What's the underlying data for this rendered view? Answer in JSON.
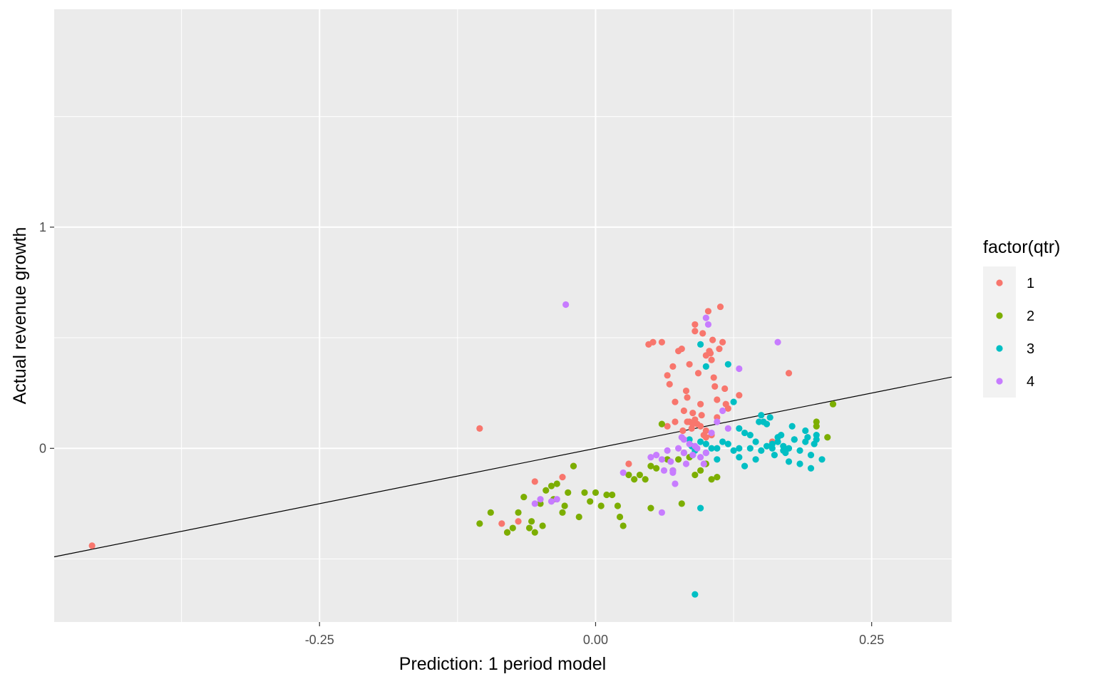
{
  "chart_data": {
    "type": "scatter",
    "title": "",
    "xlabel": "Prediction: 1 period model",
    "ylabel": "Actual revenue growth",
    "xlim": [
      -0.4903,
      0.3225
    ],
    "ylim": [
      -0.785,
      1.985
    ],
    "x_ticks": [
      -0.25,
      0.0,
      0.25
    ],
    "x_tick_labels": [
      "-0.25",
      "0.00",
      "0.25"
    ],
    "y_ticks": [
      0,
      1
    ],
    "y_tick_labels": [
      "0",
      "1"
    ],
    "grid": true,
    "reference_line": {
      "intercept": 0,
      "slope": 1
    },
    "legend": {
      "title": "factor(qtr)",
      "placement": "right",
      "entries": [
        {
          "label": "1",
          "color": "#F8766D"
        },
        {
          "label": "2",
          "color": "#7CAE00"
        },
        {
          "label": "3",
          "color": "#00BFC4"
        },
        {
          "label": "4",
          "color": "#C77CFF"
        }
      ]
    },
    "series": [
      {
        "name": "1",
        "color": "#F8766D",
        "x": [
          -0.456,
          -0.105,
          -0.085,
          -0.08,
          -0.07,
          -0.055,
          -0.03,
          -0.02,
          0.03,
          0.048,
          0.052,
          0.06,
          0.065,
          0.067,
          0.07,
          0.072,
          0.075,
          0.078,
          0.08,
          0.082,
          0.083,
          0.085,
          0.085,
          0.087,
          0.088,
          0.09,
          0.09,
          0.092,
          0.093,
          0.095,
          0.096,
          0.097,
          0.098,
          0.1,
          0.1,
          0.102,
          0.103,
          0.104,
          0.105,
          0.106,
          0.107,
          0.108,
          0.11,
          0.11,
          0.112,
          0.113,
          0.115,
          0.117,
          0.118,
          0.12,
          0.13,
          0.16,
          0.175,
          0.065,
          0.072,
          0.079,
          0.083,
          0.088,
          0.09,
          0.095,
          0.1,
          0.105
        ],
        "y": [
          -0.44,
          0.09,
          -0.34,
          -0.38,
          -0.33,
          -0.15,
          -0.13,
          -0.08,
          -0.07,
          0.47,
          0.48,
          0.48,
          0.33,
          0.29,
          0.37,
          0.21,
          0.44,
          0.45,
          0.17,
          0.26,
          0.23,
          0.38,
          0.12,
          0.09,
          0.11,
          0.56,
          0.53,
          0.11,
          0.34,
          0.2,
          0.15,
          0.52,
          0.06,
          0.42,
          0.05,
          0.62,
          0.44,
          0.43,
          0.4,
          0.49,
          0.32,
          0.28,
          0.14,
          0.22,
          0.45,
          0.64,
          0.48,
          0.27,
          0.2,
          0.18,
          0.24,
          0.03,
          0.34,
          0.1,
          0.12,
          0.08,
          0.12,
          0.16,
          0.13,
          0.1,
          0.08,
          0.06
        ]
      },
      {
        "name": "2",
        "color": "#7CAE00",
        "x": [
          -0.105,
          -0.095,
          -0.08,
          -0.075,
          -0.07,
          -0.065,
          -0.06,
          -0.058,
          -0.055,
          -0.05,
          -0.048,
          -0.045,
          -0.04,
          -0.038,
          -0.035,
          -0.03,
          -0.028,
          -0.025,
          -0.02,
          -0.015,
          -0.01,
          -0.005,
          0.0,
          0.005,
          0.01,
          0.015,
          0.02,
          0.022,
          0.025,
          0.03,
          0.035,
          0.04,
          0.045,
          0.05,
          0.055,
          0.06,
          0.065,
          0.07,
          0.075,
          0.08,
          0.085,
          0.09,
          0.095,
          0.1,
          0.105,
          0.11,
          0.2,
          0.215,
          0.2,
          0.21,
          0.05,
          0.078
        ],
        "y": [
          -0.34,
          -0.29,
          -0.38,
          -0.36,
          -0.29,
          -0.22,
          -0.36,
          -0.33,
          -0.38,
          -0.25,
          -0.35,
          -0.19,
          -0.17,
          -0.23,
          -0.16,
          -0.29,
          -0.26,
          -0.2,
          -0.08,
          -0.31,
          -0.2,
          -0.24,
          -0.2,
          -0.26,
          -0.21,
          -0.21,
          -0.26,
          -0.31,
          -0.35,
          -0.12,
          -0.14,
          -0.12,
          -0.14,
          -0.08,
          -0.09,
          0.11,
          -0.05,
          -0.1,
          -0.05,
          -0.02,
          -0.04,
          -0.12,
          -0.1,
          -0.07,
          -0.14,
          -0.13,
          0.12,
          0.2,
          0.1,
          0.05,
          -0.27,
          -0.25
        ]
      },
      {
        "name": "3",
        "color": "#00BFC4",
        "x": [
          0.09,
          0.095,
          0.1,
          0.12,
          0.125,
          0.13,
          0.135,
          0.14,
          0.145,
          0.148,
          0.15,
          0.152,
          0.155,
          0.158,
          0.16,
          0.162,
          0.165,
          0.168,
          0.17,
          0.172,
          0.175,
          0.178,
          0.18,
          0.185,
          0.19,
          0.192,
          0.195,
          0.198,
          0.2,
          0.205,
          0.095,
          0.1,
          0.11,
          0.12,
          0.125,
          0.13,
          0.14,
          0.085,
          0.087,
          0.09,
          0.095,
          0.1,
          0.105,
          0.11,
          0.115,
          0.13,
          0.135,
          0.145,
          0.15,
          0.155,
          0.16,
          0.165,
          0.17,
          0.175,
          0.18,
          0.185,
          0.19,
          0.195,
          0.2,
          0.088,
          0.09
        ],
        "y": [
          -0.66,
          -0.27,
          0.37,
          0.38,
          0.21,
          0.09,
          0.07,
          0.06,
          0.03,
          0.12,
          0.15,
          0.12,
          0.11,
          0.14,
          0.02,
          -0.03,
          0.05,
          0.06,
          0.01,
          -0.02,
          -0.06,
          0.1,
          0.04,
          -0.07,
          0.08,
          0.05,
          -0.09,
          0.02,
          0.06,
          -0.05,
          0.47,
          -0.02,
          -0.05,
          0.02,
          -0.01,
          0.0,
          0.0,
          0.04,
          0.01,
          0.0,
          0.03,
          0.02,
          0.0,
          0.0,
          0.03,
          -0.04,
          -0.08,
          -0.05,
          -0.01,
          0.01,
          0.0,
          0.03,
          -0.01,
          0.0,
          0.04,
          -0.01,
          0.03,
          -0.03,
          0.04,
          -0.03,
          -0.01
        ]
      },
      {
        "name": "4",
        "color": "#C77CFF",
        "x": [
          -0.027,
          -0.055,
          -0.05,
          -0.04,
          -0.035,
          0.025,
          0.05,
          0.055,
          0.06,
          0.062,
          0.065,
          0.068,
          0.07,
          0.072,
          0.075,
          0.078,
          0.08,
          0.082,
          0.085,
          0.088,
          0.09,
          0.092,
          0.095,
          0.098,
          0.1,
          0.102,
          0.105,
          0.11,
          0.115,
          0.12,
          0.13,
          0.165,
          0.06,
          0.07,
          0.08,
          0.1
        ],
        "y": [
          0.65,
          -0.25,
          -0.23,
          -0.24,
          -0.23,
          -0.11,
          -0.04,
          -0.03,
          -0.05,
          -0.1,
          -0.01,
          -0.06,
          -0.1,
          -0.16,
          0.0,
          0.05,
          -0.02,
          -0.07,
          0.02,
          -0.03,
          0.01,
          0.0,
          -0.04,
          -0.07,
          0.59,
          0.56,
          0.07,
          0.12,
          0.17,
          0.09,
          0.36,
          0.48,
          -0.29,
          -0.11,
          0.04,
          -0.02
        ]
      }
    ]
  }
}
